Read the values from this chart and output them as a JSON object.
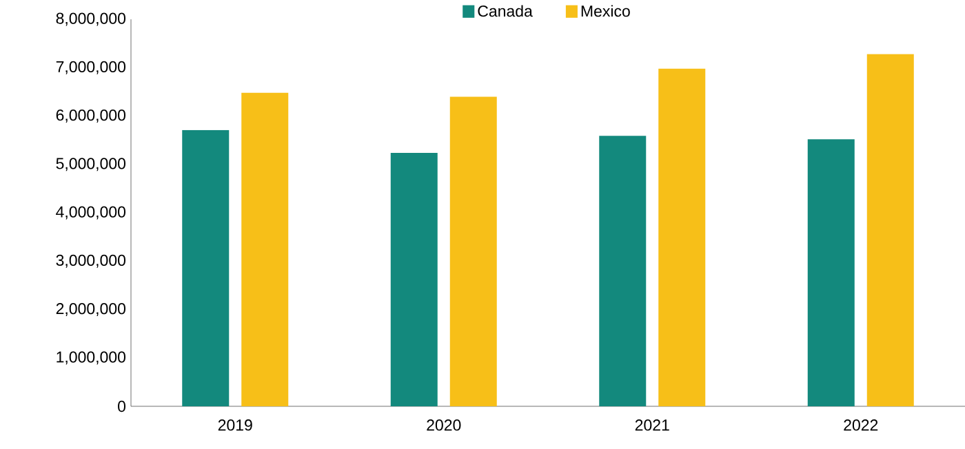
{
  "chart_data": {
    "type": "bar",
    "categories": [
      "2019",
      "2020",
      "2021",
      "2022"
    ],
    "series": [
      {
        "name": "Canada",
        "color": "#13897d",
        "values": [
          5710000,
          5240000,
          5590000,
          5520000
        ]
      },
      {
        "name": "Mexico",
        "color": "#f7bf18",
        "values": [
          6480000,
          6400000,
          6980000,
          7280000
        ]
      }
    ],
    "ylim": [
      0,
      8000000
    ],
    "yticks": [
      0,
      {
        "value": 1000000,
        "label": "1,000,000"
      },
      {
        "value": 2000000,
        "label": "2,000,000"
      },
      {
        "value": 3000000,
        "label": "3,000,000"
      },
      {
        "value": 4000000,
        "label": "4,000,000"
      },
      {
        "value": 5000000,
        "label": "5,000,000"
      },
      {
        "value": 6000000,
        "label": "6,000,000"
      },
      {
        "value": 7000000,
        "label": "7,000,000"
      },
      {
        "value": 8000000,
        "label": "8,000,000"
      }
    ],
    "grid": false,
    "legend": "top"
  }
}
